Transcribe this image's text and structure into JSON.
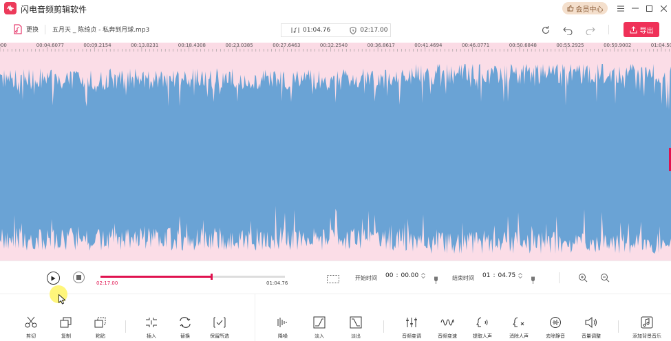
{
  "window": {
    "app_title": "闪电音频剪辑软件",
    "vip_label": "会员中心",
    "menu_icon": "menu-icon",
    "minimize_icon": "minimize-icon",
    "maximize_icon": "maximize-icon",
    "close_icon": "close-icon"
  },
  "toolbar": {
    "replace_label": "更换",
    "file_name": "五月天 _ 陈绮贞 - 私奔到月球.mp3",
    "selection_length": "01:04.76",
    "total_length": "02:17.00",
    "export_label": "导出"
  },
  "ruler": {
    "labels": [
      "0000",
      "00:04.6077",
      "00:09.2154",
      "00:13.8231",
      "00:18.4308",
      "00:23.0385",
      "00:27.6463",
      "00:32.2540",
      "00:36.8617",
      "00:41.4694",
      "00:46.0771",
      "00:50.6848",
      "00:55.2925",
      "00:59.9002",
      "01:04.5079"
    ]
  },
  "waveform": {
    "fill_color": "#6aa3d5",
    "background_color": "#fbdde7"
  },
  "playback": {
    "progress_fraction": 0.6,
    "start_time": "02:17.00",
    "end_time": "01:04.76"
  },
  "range": {
    "start_label": "开始时间",
    "start_minutes": "00",
    "start_seconds": "00.00",
    "end_label": "结束时间",
    "end_minutes": "01",
    "end_seconds": "04.75"
  },
  "tools": [
    {
      "label": "剪切",
      "icon": "scissors-icon"
    },
    {
      "label": "复制",
      "icon": "copy-icon"
    },
    {
      "label": "粘贴",
      "icon": "paste-icon"
    },
    {
      "label": "插入",
      "icon": "insert-icon"
    },
    {
      "label": "替换",
      "icon": "replace-icon"
    },
    {
      "label": "保留所选",
      "icon": "keep-selection-icon"
    },
    {
      "label": "降噪",
      "icon": "denoise-icon"
    },
    {
      "label": "淡入",
      "icon": "fade-in-icon"
    },
    {
      "label": "淡出",
      "icon": "fade-out-icon"
    },
    {
      "label": "音频变调",
      "icon": "pitch-icon"
    },
    {
      "label": "音频变速",
      "icon": "speed-icon"
    },
    {
      "label": "提取人声",
      "icon": "extract-voice-icon"
    },
    {
      "label": "消除人声",
      "icon": "remove-voice-icon"
    },
    {
      "label": "去除静音",
      "icon": "remove-silence-icon"
    },
    {
      "label": "音量调整",
      "icon": "volume-icon"
    },
    {
      "label": "添加背景音乐",
      "icon": "add-music-icon"
    }
  ]
}
